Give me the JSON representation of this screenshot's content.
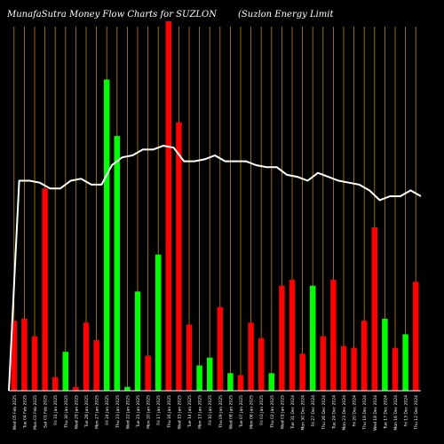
{
  "chart_data": {
    "type": "bar",
    "title_left": "MunafaSutra  Money Flow  Charts for SUZLON",
    "title_right": "(Suzlon  Energy Limit",
    "x_tick_labels": [
      "Wed 05 Feb 2025",
      "Tue 04 Feb 2025",
      "Mon 03 Feb 2025",
      "Sat 01 Feb 2025",
      "Fri 31 Jan 2025",
      "Thu 30 Jan 2025",
      "Wed 29 Jan 2025",
      "Tue 28 Jan 2025",
      "Mon 27 Jan 2025",
      "Fri 24 Jan 2025",
      "Thu 23 Jan 2025",
      "Wed 22 Jan 2025",
      "Tue 21 Jan 2025",
      "Mon 20 Jan 2025",
      "Fri 17 Jan 2025",
      "Thu 16 Jan 2025",
      "Wed 15 Jan 2025",
      "Tue 14 Jan 2025",
      "Mon 13 Jan 2025",
      "Fri 10 Jan 2025",
      "Thu 09 Jan 2025",
      "Wed 08 Jan 2025",
      "Tue 07 Jan 2025",
      "Mon 06 Jan 2025",
      "Fri 03 Jan 2025",
      "Thu 02 Jan 2025",
      "Wed 01 Jan 2025",
      "Tue 31 Dec 2024",
      "Mon 30 Dec 2024",
      "Fri 27 Dec 2024",
      "Thu 26 Dec 2024",
      "Tue 24 Dec 2024",
      "Mon 23 Dec 2024",
      "Fri 20 Dec 2024",
      "Thu 19 Dec 2024",
      "Wed 18 Dec 2024",
      "Tue 17 Dec 2024",
      "Mon 16 Dec 2024",
      "Fri 13 Dec 2024",
      "Thu 12 Dec 2024"
    ],
    "bars": [
      {
        "value": 18,
        "color": "red"
      },
      {
        "value": 18.5,
        "color": "red"
      },
      {
        "value": 14,
        "color": "red"
      },
      {
        "value": 52,
        "color": "red"
      },
      {
        "value": 3.5,
        "color": "red"
      },
      {
        "value": 10,
        "color": "green"
      },
      {
        "value": 1,
        "color": "red"
      },
      {
        "value": 17.5,
        "color": "red"
      },
      {
        "value": 13,
        "color": "red"
      },
      {
        "value": 80,
        "color": "green"
      },
      {
        "value": 65.5,
        "color": "green"
      },
      {
        "value": 1,
        "color": "green"
      },
      {
        "value": 25.5,
        "color": "green"
      },
      {
        "value": 9,
        "color": "red"
      },
      {
        "value": 35,
        "color": "green"
      },
      {
        "value": 95,
        "color": "red"
      },
      {
        "value": 69,
        "color": "red"
      },
      {
        "value": 17,
        "color": "red"
      },
      {
        "value": 6.5,
        "color": "green"
      },
      {
        "value": 8.5,
        "color": "green"
      },
      {
        "value": 21.5,
        "color": "red"
      },
      {
        "value": 4.5,
        "color": "green"
      },
      {
        "value": 4,
        "color": "red"
      },
      {
        "value": 17.5,
        "color": "red"
      },
      {
        "value": 13.5,
        "color": "red"
      },
      {
        "value": 4.5,
        "color": "green"
      },
      {
        "value": 27,
        "color": "red"
      },
      {
        "value": 28.5,
        "color": "red"
      },
      {
        "value": 9.5,
        "color": "red"
      },
      {
        "value": 27,
        "color": "green"
      },
      {
        "value": 14,
        "color": "red"
      },
      {
        "value": 28.5,
        "color": "red"
      },
      {
        "value": 11.5,
        "color": "red"
      },
      {
        "value": 11,
        "color": "red"
      },
      {
        "value": 18,
        "color": "red"
      },
      {
        "value": 42,
        "color": "red"
      },
      {
        "value": 18.5,
        "color": "green"
      },
      {
        "value": 11,
        "color": "red"
      },
      {
        "value": 14.5,
        "color": "green"
      },
      {
        "value": 28,
        "color": "red"
      }
    ],
    "line": [
      0,
      54,
      54,
      53.5,
      52,
      52,
      54,
      54.5,
      53,
      53,
      58,
      60,
      60.5,
      62,
      62,
      63,
      62.5,
      59,
      59,
      59.5,
      60.5,
      59,
      59,
      59,
      58,
      57.5,
      57.5,
      55.5,
      55,
      54,
      56,
      55,
      54,
      53.5,
      53,
      51.5,
      49,
      50,
      50,
      51.5,
      50
    ],
    "ylim": [
      0,
      100
    ],
    "grid": "vertical",
    "colors": {
      "background": "#000000",
      "grid": "#b8860b",
      "up": "#00ff00",
      "down": "#ff0000",
      "line": "#ffffff",
      "text": "#ffffff"
    }
  }
}
